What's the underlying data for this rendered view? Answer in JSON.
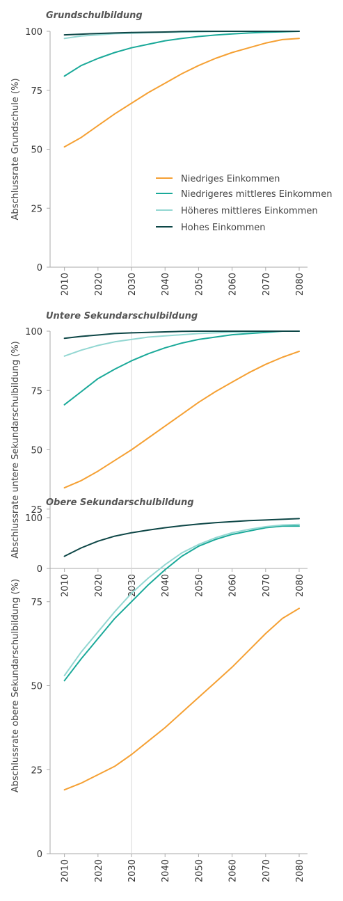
{
  "legend": [
    {
      "key": "low",
      "label": "Niedriges Einkommen",
      "color": "#f5a033"
    },
    {
      "key": "lower_middle",
      "label": "Niedrigeres mittleres Einkommen",
      "color": "#1aa999"
    },
    {
      "key": "upper_middle",
      "label": "Höheres mittleres Einkommen",
      "color": "#93d7d2"
    },
    {
      "key": "high",
      "label": "Hohes Einkommen",
      "color": "#0d4646"
    }
  ],
  "chart_data": [
    {
      "type": "line",
      "title": "Grundschulbildung",
      "ylabel": "Abschlussrate Grundschule (%)",
      "xlabel": "",
      "ylim": [
        0,
        100
      ],
      "y_ticks": [
        "0",
        "25",
        "50",
        "75",
        "100"
      ],
      "x_ticks": [
        "2010",
        "2020",
        "2030",
        "2040",
        "2050",
        "2060",
        "2070",
        "2080"
      ],
      "reference_line_x": 2030,
      "legend_position": "right-middle",
      "x": [
        2010,
        2015,
        2020,
        2025,
        2030,
        2035,
        2040,
        2045,
        2050,
        2055,
        2060,
        2065,
        2070,
        2075,
        2080
      ],
      "series": [
        {
          "key": "low",
          "name": "Niedriges Einkommen",
          "color": "#f5a033",
          "values": [
            51,
            55,
            60,
            65,
            69.5,
            74,
            78,
            82,
            85.5,
            88.5,
            91,
            93,
            95,
            96.5,
            97
          ]
        },
        {
          "key": "lower_middle",
          "name": "Niedrigeres mittleres Einkommen",
          "color": "#1aa999",
          "values": [
            81,
            85.5,
            88.5,
            91,
            93,
            94.5,
            96,
            97,
            97.8,
            98.4,
            98.9,
            99.3,
            99.6,
            99.8,
            100
          ]
        },
        {
          "key": "upper_middle",
          "name": "Höheres mittleres Einkommen",
          "color": "#93d7d2",
          "values": [
            97,
            98,
            98.5,
            99,
            99.2,
            99.4,
            99.6,
            99.7,
            99.8,
            99.9,
            100,
            100,
            100,
            100,
            100
          ]
        },
        {
          "key": "high",
          "name": "Hohes Einkommen",
          "color": "#0d4646",
          "values": [
            98.5,
            98.8,
            99.1,
            99.3,
            99.5,
            99.6,
            99.7,
            99.9,
            100,
            100,
            100,
            100,
            100,
            100,
            100
          ]
        }
      ]
    },
    {
      "type": "line",
      "title": "Untere Sekundarschulbildung",
      "ylabel": "Abschlussrate untere Sekundarschulbildung (%)",
      "xlabel": "",
      "ylim": [
        0,
        100
      ],
      "y_ticks": [
        "0",
        "25",
        "50",
        "75",
        "100"
      ],
      "x_ticks": [
        "2010",
        "2020",
        "2030",
        "2040",
        "2050",
        "2060",
        "2070",
        "2080"
      ],
      "reference_line_x": 2030,
      "x": [
        2010,
        2015,
        2020,
        2025,
        2030,
        2035,
        2040,
        2045,
        2050,
        2055,
        2060,
        2065,
        2070,
        2075,
        2080
      ],
      "series": [
        {
          "key": "low",
          "name": "Niedriges Einkommen",
          "color": "#f5a033",
          "values": [
            34,
            37,
            41,
            45.5,
            50,
            55,
            60,
            65,
            70,
            74.5,
            78.5,
            82.5,
            86,
            89,
            91.5
          ]
        },
        {
          "key": "lower_middle",
          "name": "Niedrigeres mittleres Einkommen",
          "color": "#1aa999",
          "values": [
            69,
            74.5,
            80,
            84,
            87.5,
            90.5,
            93,
            95,
            96.5,
            97.5,
            98.5,
            99,
            99.5,
            100,
            100
          ]
        },
        {
          "key": "upper_middle",
          "name": "Höheres mittleres Einkommen",
          "color": "#93d7d2",
          "values": [
            89.5,
            92,
            94,
            95.5,
            96.5,
            97.5,
            98,
            98.5,
            99,
            99.3,
            99.6,
            99.8,
            100,
            100,
            100
          ]
        },
        {
          "key": "high",
          "name": "Hohes Einkommen",
          "color": "#0d4646",
          "values": [
            97,
            97.8,
            98.4,
            99,
            99.3,
            99.5,
            99.7,
            99.9,
            100,
            100,
            100,
            100,
            100,
            100,
            100
          ]
        }
      ]
    },
    {
      "type": "line",
      "title": "Obere Sekundarschulbildung",
      "ylabel": "Abschlussrate obere Sekundarschulbildung (%)",
      "xlabel": "",
      "ylim": [
        0,
        100
      ],
      "y_ticks": [
        "0",
        "25",
        "50",
        "75",
        "100"
      ],
      "x_ticks": [
        "2010",
        "2020",
        "2030",
        "2040",
        "2050",
        "2060",
        "2070",
        "2080"
      ],
      "reference_line_x": 2030,
      "x": [
        2010,
        2015,
        2020,
        2025,
        2030,
        2035,
        2040,
        2045,
        2050,
        2055,
        2060,
        2065,
        2070,
        2075,
        2080
      ],
      "series": [
        {
          "key": "low",
          "name": "Niedriges Einkommen",
          "color": "#f5a033",
          "values": [
            19,
            21,
            23.5,
            26,
            29.5,
            33.5,
            37.5,
            42,
            46.5,
            51,
            55.5,
            60.5,
            65.5,
            70,
            73
          ]
        },
        {
          "key": "lower_middle",
          "name": "Niedrigeres mittleres Einkommen",
          "color": "#1aa999",
          "values": [
            51.5,
            58,
            64,
            70,
            75,
            80,
            84.5,
            88.5,
            91.5,
            93.5,
            95,
            96,
            97,
            97.5,
            97.5
          ]
        },
        {
          "key": "upper_middle",
          "name": "Höheres mittleres Einkommen",
          "color": "#93d7d2",
          "values": [
            53,
            60,
            66,
            72,
            77.5,
            82,
            86,
            89.5,
            92,
            94,
            95.5,
            96.5,
            97.3,
            97.8,
            98
          ]
        },
        {
          "key": "high",
          "name": "Hohes Einkommen",
          "color": "#0d4646",
          "values": [
            88.5,
            91,
            93,
            94.5,
            95.5,
            96.3,
            97,
            97.6,
            98.1,
            98.5,
            98.8,
            99.1,
            99.3,
            99.5,
            99.7
          ]
        }
      ]
    }
  ]
}
